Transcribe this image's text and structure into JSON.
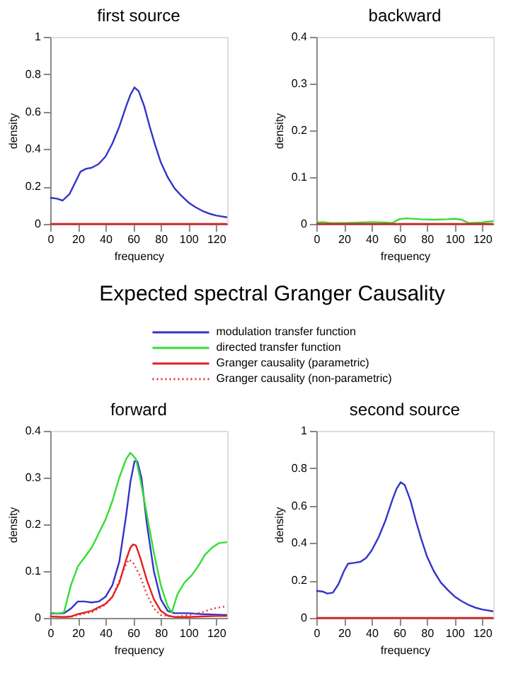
{
  "chart_data": [
    {
      "type": "line",
      "title": "first source",
      "xlabel": "frequency",
      "ylabel": "density",
      "xlim": [
        0,
        128
      ],
      "xticks": [
        0,
        20,
        40,
        60,
        80,
        100,
        120
      ],
      "ylim": [
        0,
        1
      ],
      "yticks": [
        0,
        0.2,
        0.4,
        0.6,
        0.8,
        1
      ],
      "grid": false,
      "series": [
        {
          "color": "#3333cc",
          "x": [
            0,
            5,
            9,
            14,
            18,
            22,
            26,
            30,
            35,
            40,
            45,
            50,
            55,
            58,
            61,
            64,
            68,
            72,
            76,
            80,
            85,
            90,
            95,
            100,
            105,
            110,
            115,
            120,
            128
          ],
          "values": [
            0.14,
            0.135,
            0.125,
            0.16,
            0.22,
            0.28,
            0.295,
            0.3,
            0.32,
            0.36,
            0.43,
            0.52,
            0.63,
            0.69,
            0.73,
            0.71,
            0.63,
            0.52,
            0.42,
            0.33,
            0.25,
            0.19,
            0.15,
            0.115,
            0.09,
            0.07,
            0.055,
            0.045,
            0.035
          ]
        },
        {
          "color": "#e02020",
          "x": [
            0,
            128
          ],
          "values": [
            0,
            0
          ]
        }
      ]
    },
    {
      "type": "line",
      "title": "backward",
      "xlabel": "frequency",
      "ylabel": "density",
      "xlim": [
        0,
        128
      ],
      "xticks": [
        0,
        20,
        40,
        60,
        80,
        100,
        120
      ],
      "ylim": [
        0,
        0.4
      ],
      "yticks": [
        0,
        0.1,
        0.2,
        0.3,
        0.4
      ],
      "grid": false,
      "series": [
        {
          "color": "#33dd33",
          "x": [
            0,
            5,
            10,
            20,
            40,
            50,
            55,
            60,
            65,
            75,
            85,
            95,
            100,
            105,
            110,
            120,
            128
          ],
          "values": [
            0.003,
            0.004,
            0.002,
            0.002,
            0.004,
            0.003,
            0.002,
            0.01,
            0.012,
            0.01,
            0.009,
            0.01,
            0.011,
            0.009,
            0.002,
            0.003,
            0.006
          ]
        },
        {
          "color": "#e02020",
          "x": [
            0,
            128
          ],
          "values": [
            0,
            0
          ]
        }
      ]
    },
    {
      "type": "other",
      "title": "Expected spectral Granger Causality"
    },
    {
      "type": "line",
      "title": "forward",
      "xlabel": "frequency",
      "ylabel": "density",
      "xlim": [
        0,
        128
      ],
      "xticks": [
        0,
        20,
        40,
        60,
        80,
        100,
        120
      ],
      "ylim": [
        0,
        0.4
      ],
      "yticks": [
        0,
        0.1,
        0.2,
        0.3,
        0.4
      ],
      "grid": false,
      "legend": "top",
      "series": [
        {
          "name": "modulation transfer function",
          "color": "#3333cc",
          "x": [
            0,
            5,
            10,
            15,
            20,
            25,
            30,
            35,
            40,
            45,
            50,
            55,
            58,
            61,
            63,
            66,
            70,
            75,
            80,
            85,
            90,
            100,
            110,
            120,
            128
          ],
          "values": [
            0.01,
            0.009,
            0.01,
            0.02,
            0.035,
            0.035,
            0.033,
            0.035,
            0.045,
            0.07,
            0.12,
            0.22,
            0.29,
            0.335,
            0.335,
            0.3,
            0.2,
            0.1,
            0.04,
            0.015,
            0.01,
            0.01,
            0.008,
            0.007,
            0.006
          ]
        },
        {
          "name": "directed transfer function",
          "color": "#33dd33",
          "x": [
            0,
            5,
            10,
            15,
            20,
            25,
            30,
            35,
            40,
            45,
            50,
            55,
            58,
            62,
            65,
            70,
            75,
            80,
            85,
            88,
            92,
            97,
            102,
            107,
            112,
            117,
            122,
            128
          ],
          "values": [
            0.012,
            0.009,
            0.012,
            0.07,
            0.11,
            0.13,
            0.15,
            0.18,
            0.21,
            0.25,
            0.3,
            0.34,
            0.353,
            0.34,
            0.3,
            0.22,
            0.14,
            0.07,
            0.025,
            0.012,
            0.05,
            0.075,
            0.09,
            0.11,
            0.135,
            0.15,
            0.16,
            0.162
          ]
        },
        {
          "name": "Granger causality (parametric)",
          "color": "#e02020",
          "x": [
            0,
            10,
            15,
            20,
            30,
            40,
            45,
            50,
            55,
            58,
            60,
            62,
            65,
            70,
            75,
            80,
            85,
            90,
            100,
            110,
            120,
            128
          ],
          "values": [
            0.003,
            0.002,
            0.003,
            0.008,
            0.015,
            0.03,
            0.045,
            0.075,
            0.125,
            0.15,
            0.157,
            0.155,
            0.13,
            0.08,
            0.04,
            0.015,
            0.005,
            0.002,
            0.002,
            0.003,
            0.004,
            0.004
          ]
        },
        {
          "name": "Granger causality (non-parametric)",
          "color": "#e83030",
          "line_style": "dotted",
          "x": [
            0,
            5,
            15,
            20,
            30,
            40,
            45,
            50,
            55,
            57,
            60,
            65,
            70,
            75,
            80,
            90,
            100,
            110,
            118,
            128
          ],
          "values": [
            0.005,
            0.002,
            0.002,
            0.006,
            0.012,
            0.028,
            0.045,
            0.08,
            0.115,
            0.125,
            0.118,
            0.09,
            0.05,
            0.02,
            0.006,
            0.002,
            0.006,
            0.012,
            0.02,
            0.025
          ]
        }
      ]
    },
    {
      "type": "line",
      "title": "second source",
      "xlabel": "frequency",
      "ylabel": "density",
      "xlim": [
        0,
        128
      ],
      "xticks": [
        0,
        20,
        40,
        60,
        80,
        100,
        120
      ],
      "ylim": [
        0,
        1
      ],
      "yticks": [
        0,
        0.2,
        0.4,
        0.6,
        0.8,
        1
      ],
      "grid": false,
      "series": [
        {
          "color": "#3333cc",
          "x": [
            0,
            5,
            8,
            12,
            16,
            20,
            23,
            28,
            32,
            36,
            40,
            45,
            50,
            55,
            58,
            61,
            64,
            68,
            72,
            76,
            80,
            85,
            90,
            95,
            100,
            105,
            110,
            115,
            120,
            128
          ],
          "values": [
            0.145,
            0.14,
            0.13,
            0.135,
            0.18,
            0.25,
            0.29,
            0.295,
            0.3,
            0.32,
            0.36,
            0.43,
            0.52,
            0.63,
            0.69,
            0.725,
            0.71,
            0.63,
            0.52,
            0.42,
            0.33,
            0.25,
            0.19,
            0.15,
            0.115,
            0.09,
            0.07,
            0.055,
            0.045,
            0.035
          ]
        },
        {
          "color": "#e02020",
          "x": [
            0,
            128
          ],
          "values": [
            0,
            0
          ]
        }
      ]
    }
  ]
}
